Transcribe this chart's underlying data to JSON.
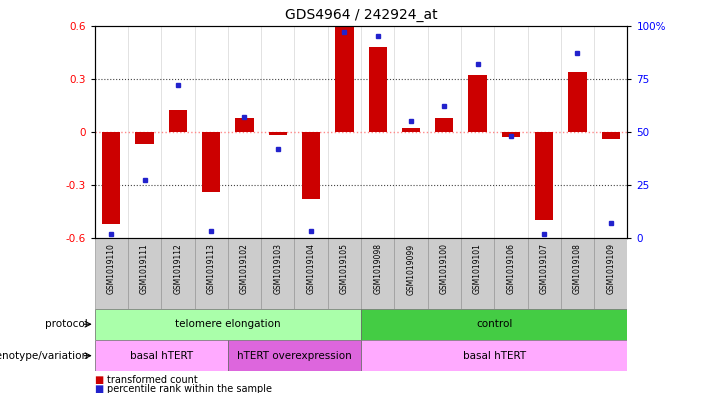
{
  "title": "GDS4964 / 242924_at",
  "samples": [
    "GSM1019110",
    "GSM1019111",
    "GSM1019112",
    "GSM1019113",
    "GSM1019102",
    "GSM1019103",
    "GSM1019104",
    "GSM1019105",
    "GSM1019098",
    "GSM1019099",
    "GSM1019100",
    "GSM1019101",
    "GSM1019106",
    "GSM1019107",
    "GSM1019108",
    "GSM1019109"
  ],
  "bar_values": [
    -0.52,
    -0.07,
    0.12,
    -0.34,
    0.08,
    -0.02,
    -0.38,
    0.6,
    0.48,
    0.02,
    0.08,
    0.32,
    -0.03,
    -0.5,
    0.34,
    -0.04
  ],
  "dot_values": [
    2,
    27,
    72,
    3,
    57,
    42,
    3,
    97,
    95,
    55,
    62,
    82,
    48,
    2,
    87,
    7
  ],
  "ylim": [
    -0.6,
    0.6
  ],
  "yticks_left": [
    -0.6,
    -0.3,
    0,
    0.3,
    0.6
  ],
  "ytick_labels_left": [
    "-0.6",
    "-0.3",
    "0",
    "0.3",
    "0.6"
  ],
  "right_yticks": [
    0,
    25,
    50,
    75,
    100
  ],
  "right_ylabels": [
    "0",
    "25",
    "50",
    "75",
    "100%"
  ],
  "hlines_dotted": [
    0.3,
    -0.3
  ],
  "bar_color": "#cc0000",
  "dot_color": "#2222cc",
  "zero_line_color": "#ff8888",
  "protocol_groups": [
    {
      "label": "telomere elongation",
      "start": 0,
      "end": 7,
      "color": "#aaffaa"
    },
    {
      "label": "control",
      "start": 8,
      "end": 15,
      "color": "#44cc44"
    }
  ],
  "genotype_groups": [
    {
      "label": "basal hTERT",
      "start": 0,
      "end": 3,
      "color": "#ffaaff"
    },
    {
      "label": "hTERT overexpression",
      "start": 4,
      "end": 7,
      "color": "#dd66dd"
    },
    {
      "label": "basal hTERT",
      "start": 8,
      "end": 15,
      "color": "#ffaaff"
    }
  ],
  "protocol_label": "protocol",
  "genotype_label": "genotype/variation",
  "legend1_color": "#cc0000",
  "legend2_color": "#2222cc",
  "legend1_text": "transformed count",
  "legend2_text": "percentile rank within the sample",
  "sample_box_color": "#cccccc",
  "sample_box_edge": "#999999"
}
